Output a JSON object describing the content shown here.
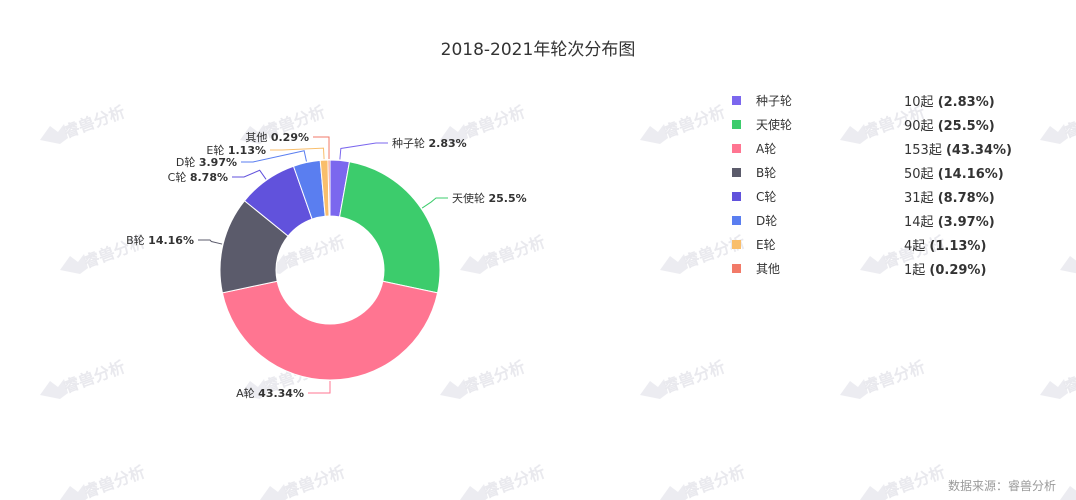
{
  "colors": {
    "种子轮": "#7b67ee",
    "天使轮": "#3ccc6c",
    "A轮": "#ff7591",
    "B轮": "#5b5b6b",
    "C轮": "#6152dc",
    "D轮": "#5a7ef0",
    "E轮": "#f9be6b",
    "其他": "#f27a68"
  },
  "watermark": "睿兽分析",
  "chart_data": {
    "type": "pie",
    "subtype": "donut",
    "title": "2018-2021年轮次分布图",
    "slices": [
      {
        "name": "种子轮",
        "count_label": "10起",
        "count": 10,
        "percent": 2.83,
        "percent_label": "2.83%"
      },
      {
        "name": "天使轮",
        "count_label": "90起",
        "count": 90,
        "percent": 25.5,
        "percent_label": "25.5%"
      },
      {
        "name": "A轮",
        "count_label": "153起",
        "count": 153,
        "percent": 43.34,
        "percent_label": "43.34%"
      },
      {
        "name": "B轮",
        "count_label": "50起",
        "count": 50,
        "percent": 14.16,
        "percent_label": "14.16%"
      },
      {
        "name": "C轮",
        "count_label": "31起",
        "count": 31,
        "percent": 8.78,
        "percent_label": "8.78%"
      },
      {
        "name": "D轮",
        "count_label": "14起",
        "count": 14,
        "percent": 3.97,
        "percent_label": "3.97%"
      },
      {
        "name": "E轮",
        "count_label": "4起",
        "count": 4,
        "percent": 1.13,
        "percent_label": "1.13%"
      },
      {
        "name": "其他",
        "count_label": "1起",
        "count": 1,
        "percent": 0.29,
        "percent_label": "0.29%"
      }
    ],
    "legend_position": "right",
    "source": "数据来源：睿兽分析"
  }
}
